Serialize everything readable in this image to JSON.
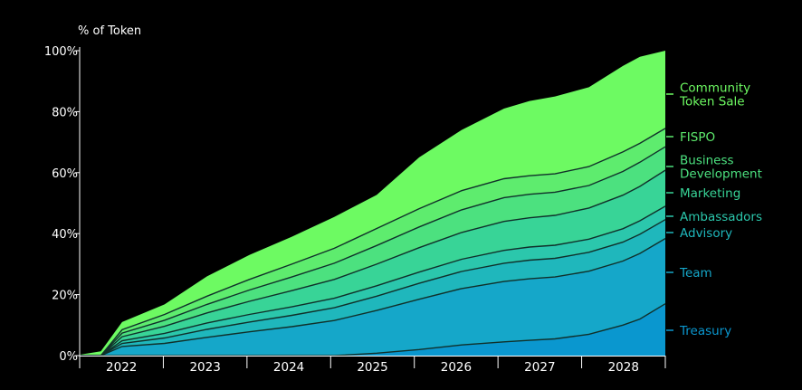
{
  "chart_data": {
    "type": "area",
    "stacked": true,
    "ylabel": "% of Token",
    "ylim": [
      0,
      100
    ],
    "yticks": [
      "0%",
      "20%",
      "40%",
      "60%",
      "80%",
      "100%"
    ],
    "categories": [
      "2022",
      "2023",
      "2024",
      "2025",
      "2026",
      "2027",
      "2028"
    ],
    "xlim": [
      2021.9,
      2028.8
    ],
    "x": [
      2021.9,
      2022.15,
      2022.4,
      2022.9,
      2023.4,
      2023.9,
      2024.4,
      2024.9,
      2025.4,
      2025.9,
      2026.4,
      2026.9,
      2027.2,
      2027.5,
      2027.9,
      2028.3,
      2028.5,
      2028.8
    ],
    "series": [
      {
        "name": "Treasury",
        "color": "#0a97cf",
        "values": [
          0,
          0,
          0,
          0,
          0,
          0,
          0,
          0,
          0.8,
          2,
          3.5,
          4.5,
          5,
          5.5,
          7,
          10,
          12,
          17
        ]
      },
      {
        "name": "Team",
        "color": "#15a7c9",
        "values": [
          0,
          0,
          3,
          4,
          6,
          7.8,
          9.5,
          11.5,
          14,
          16.5,
          18.5,
          19.8,
          20.2,
          20.3,
          20.7,
          21,
          21.5,
          21.4
        ]
      },
      {
        "name": "Advisory",
        "color": "#1fb7bc",
        "values": [
          0,
          0,
          1,
          1.8,
          2.6,
          3.2,
          3.7,
          4.2,
          4.7,
          5.2,
          5.6,
          6,
          6.1,
          6.1,
          6.2,
          6.2,
          6.3,
          6.2
        ]
      },
      {
        "name": "Ambassadors",
        "color": "#2bc7ac",
        "values": [
          0,
          0,
          0.9,
          1.5,
          2.1,
          2.5,
          2.8,
          3.1,
          3.4,
          3.7,
          4,
          4.2,
          4.3,
          4.3,
          4.3,
          4.4,
          4.4,
          4.4
        ]
      },
      {
        "name": "Marketing",
        "color": "#38d497",
        "values": [
          0,
          0,
          1.3,
          2.3,
          3.3,
          4.3,
          5.3,
          6.2,
          7.1,
          8,
          8.8,
          9.5,
          9.6,
          9.8,
          10.2,
          11,
          11.3,
          11.8
        ]
      },
      {
        "name": "Business Development",
        "color": "#4ce17f",
        "values": [
          0,
          0,
          1.2,
          2,
          2.8,
          3.7,
          4.5,
          5.3,
          6.1,
          6.8,
          7.4,
          7.8,
          7.7,
          7.6,
          7.4,
          7.8,
          7.9,
          7.7
        ]
      },
      {
        "name": "FISPO",
        "color": "#5eec6e",
        "values": [
          0,
          0,
          1.1,
          1.9,
          2.7,
          3.5,
          4.2,
          4.9,
          5.6,
          6,
          6.3,
          6.2,
          6.1,
          6,
          6.2,
          6.4,
          6.2,
          6
        ]
      },
      {
        "name": "Community Token Sale",
        "color": "#6dfa62",
        "values": [
          0.3,
          1.4,
          2.5,
          3.3,
          6.5,
          8,
          9,
          10.3,
          11,
          16.8,
          19.9,
          23,
          24.5,
          25.4,
          26,
          28.2,
          28.4,
          25.5
        ]
      }
    ],
    "grid": false,
    "legend": "right"
  }
}
